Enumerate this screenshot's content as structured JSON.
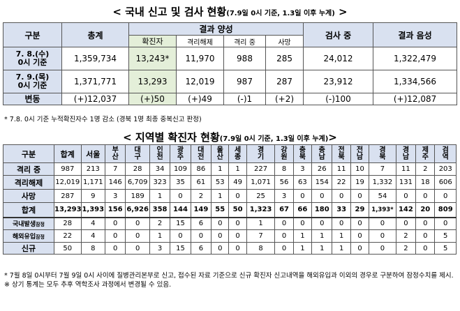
{
  "table1": {
    "title": "< 국내 신고 및 검사 현황",
    "title_sub": "(7.9일 0시 기준, 1.3일 이후 누계)",
    "title_end": " >",
    "headers": {
      "gubun": "구분",
      "total": "총계",
      "result_positive": "결과 양성",
      "confirmed": "확진자",
      "isolation_released": "격리해제",
      "in_isolation": "격리 중",
      "deaths": "사망",
      "testing": "검사 중",
      "result_negative": "결과 음성"
    },
    "rows": [
      {
        "label1": "7. 8.(수)",
        "label2": "0시 기준",
        "total": "1,359,734",
        "confirmed": "13,243*",
        "released": "11,970",
        "isolation": "988",
        "deaths": "285",
        "testing": "24,012",
        "negative": "1,322,479"
      },
      {
        "label1": "7. 9.(목)",
        "label2": "0시 기준",
        "total": "1,371,771",
        "confirmed": "13,293",
        "released": "12,019",
        "isolation": "987",
        "deaths": "287",
        "testing": "23,912",
        "negative": "1,334,566"
      },
      {
        "label1": "변동",
        "label2": "",
        "total": "(+)12,037",
        "confirmed": "(+)50",
        "released": "(+)49",
        "isolation": "(-)1",
        "deaths": "(+2)",
        "testing": "(-)100",
        "negative": "(+)12,087"
      }
    ],
    "note": "* 7.8. 0시 기준 누적확진자수 1명 감소 (경북 1명 최종 중복신고 판정)"
  },
  "table2": {
    "title": "< 지역별 확진자 현황",
    "title_sub": "(7.9일 0시 기준, 1.3일 이후 누계)",
    "title_end": ">",
    "headers": [
      "구분",
      "합계",
      "서울",
      "부산",
      "대구",
      "인천",
      "광주",
      "대전",
      "울산",
      "세종",
      "경기",
      "강원",
      "충북",
      "충남",
      "전북",
      "전남",
      "경북",
      "경남",
      "제주",
      "검역"
    ],
    "rows": [
      {
        "label": "격리 중",
        "values": [
          "987",
          "213",
          "7",
          "28",
          "34",
          "109",
          "86",
          "1",
          "1",
          "227",
          "8",
          "3",
          "26",
          "11",
          "10",
          "7",
          "11",
          "2",
          "203"
        ]
      },
      {
        "label": "격리해제",
        "values": [
          "12,019",
          "1,171",
          "146",
          "6,709",
          "323",
          "35",
          "61",
          "53",
          "49",
          "1,071",
          "56",
          "63",
          "154",
          "22",
          "19",
          "1,332",
          "131",
          "18",
          "606"
        ]
      },
      {
        "label": "사망",
        "values": [
          "287",
          "9",
          "3",
          "189",
          "1",
          "0",
          "2",
          "1",
          "0",
          "25",
          "3",
          "0",
          "0",
          "0",
          "0",
          "54",
          "0",
          "0",
          "0"
        ]
      },
      {
        "label": "합계",
        "values": [
          "13,293",
          "1,393",
          "156",
          "6,926",
          "358",
          "144",
          "149",
          "55",
          "50",
          "1,323",
          "67",
          "66",
          "180",
          "33",
          "29",
          "1,393*",
          "142",
          "20",
          "809"
        ]
      },
      {
        "label": "국내발생",
        "label_suffix": "잠정",
        "values": [
          "28",
          "4",
          "0",
          "0",
          "2",
          "15",
          "6",
          "0",
          "0",
          "1",
          "0",
          "0",
          "0",
          "0",
          "0",
          "0",
          "0",
          "0",
          "0"
        ]
      },
      {
        "label": "해외유입",
        "label_suffix": "잠정",
        "values": [
          "22",
          "4",
          "0",
          "0",
          "1",
          "0",
          "0",
          "0",
          "0",
          "7",
          "0",
          "1",
          "1",
          "1",
          "0",
          "0",
          "2",
          "0",
          "5"
        ]
      },
      {
        "label": "신규",
        "label_suffix": "",
        "values": [
          "50",
          "8",
          "0",
          "0",
          "3",
          "15",
          "6",
          "0",
          "0",
          "8",
          "0",
          "1",
          "1",
          "1",
          "0",
          "0",
          "2",
          "0",
          "5"
        ]
      }
    ],
    "note": "* 7월 8일 0시부터 7월 9일 0시 사이에 질병관리본부로 신고, 접수된 자료 기준으로 신규 확진자 신고내역을 해외유입과 이외의 경우로 구분하여 잠정수치를 제시. ※ 상기 통계는 모두 추후 역학조사 과정에서 변경될 수 있음."
  }
}
